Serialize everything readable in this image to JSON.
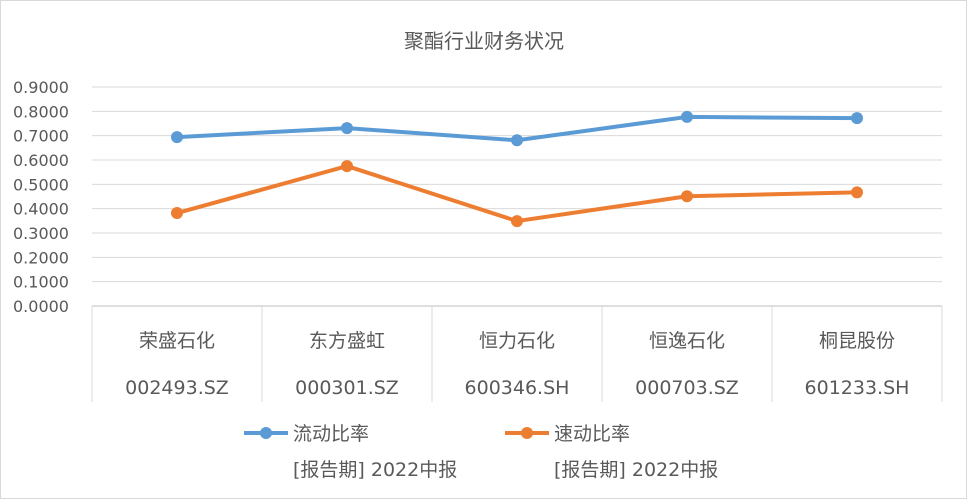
{
  "chart_data": {
    "type": "line",
    "title": "聚酯行业财务状况",
    "categories": [
      {
        "name": "荣盛石化",
        "code": "002493.SZ"
      },
      {
        "name": "东方盛虹",
        "code": "000301.SZ"
      },
      {
        "name": "恒力石化",
        "code": "600346.SH"
      },
      {
        "name": "恒逸石化",
        "code": "000703.SZ"
      },
      {
        "name": "桐昆股份",
        "code": "601233.SH"
      }
    ],
    "series": [
      {
        "name": "流动比率",
        "period": "[报告期] 2022中报",
        "color": "#5b9bd5",
        "values": [
          0.694,
          0.731,
          0.681,
          0.777,
          0.772
        ]
      },
      {
        "name": "速动比率",
        "period": "[报告期] 2022中报",
        "color": "#ed7d31",
        "values": [
          0.382,
          0.575,
          0.349,
          0.451,
          0.467
        ]
      }
    ],
    "ylim": [
      0,
      0.9
    ],
    "yticks": [
      "0.0000",
      "0.1000",
      "0.2000",
      "0.3000",
      "0.4000",
      "0.5000",
      "0.6000",
      "0.7000",
      "0.8000",
      "0.9000"
    ],
    "grid": true,
    "legend": "bottom"
  }
}
